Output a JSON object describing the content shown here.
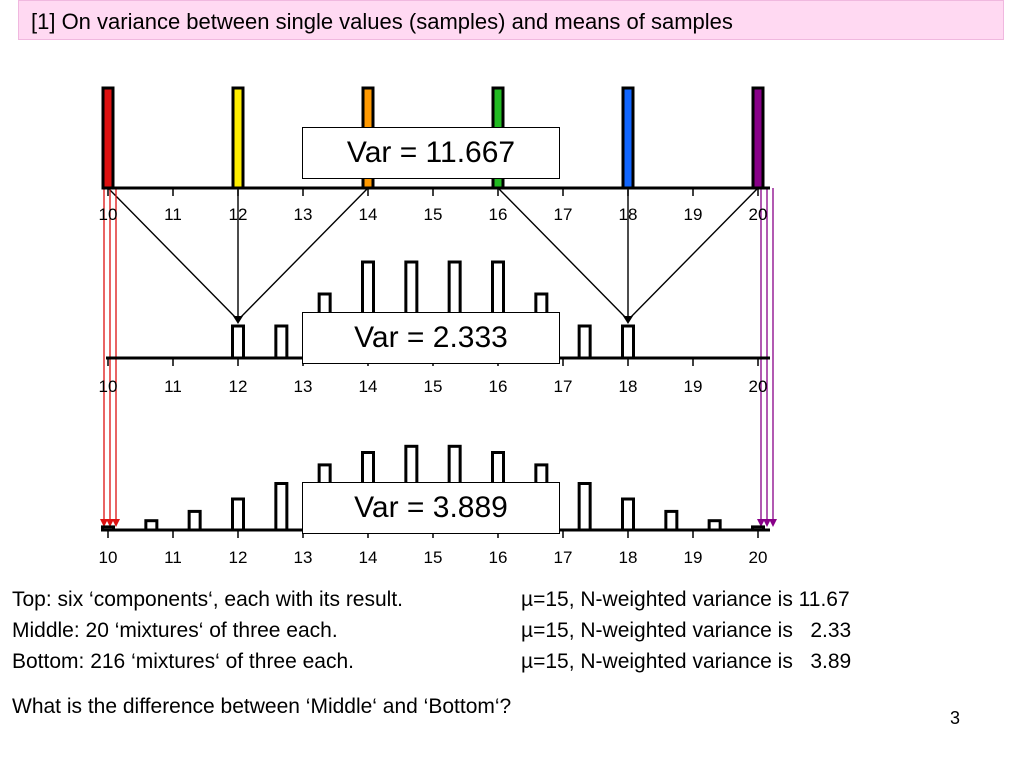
{
  "slide": {
    "title": "[1] On variance between single values (samples) and means of samples",
    "page_number": "3"
  },
  "captions": {
    "top_left": "Top: six ‘components‘, each with its result.",
    "top_right": "µ=15, N-weighted variance is 11.67",
    "middle_left": "Middle: 20 ‘mixtures‘ of three each.",
    "middle_right": "µ=15, N-weighted variance is   2.33",
    "bottom_left": "Bottom: 216 ‘mixtures‘ of three each.",
    "bottom_right": "µ=15, N-weighted variance is   3.89",
    "question": "What is the difference between ‘Middle‘ and ‘Bottom‘?"
  },
  "chart_data": [
    {
      "type": "bar",
      "panel": "top",
      "annotation": "Var = 11.667",
      "x": [
        10,
        12,
        14,
        16,
        18,
        20
      ],
      "values": [
        1,
        1,
        1,
        1,
        1,
        1
      ],
      "colors": [
        "#dd1111",
        "#ffee00",
        "#ff9900",
        "#22bb22",
        "#1166ff",
        "#880088"
      ],
      "xticks": [
        "10",
        "11",
        "12",
        "13",
        "14",
        "15",
        "16",
        "17",
        "18",
        "19",
        "20"
      ],
      "xlim": [
        10,
        20
      ]
    },
    {
      "type": "bar",
      "panel": "middle",
      "annotation": "Var = 2.333",
      "x": [
        12,
        12.667,
        13.333,
        14,
        14.667,
        15.333,
        16,
        16.667,
        17.333,
        18
      ],
      "values": [
        1,
        1,
        2,
        3,
        3,
        3,
        3,
        2,
        1,
        1
      ],
      "xticks": [
        "10",
        "11",
        "12",
        "13",
        "14",
        "15",
        "16",
        "17",
        "18",
        "19",
        "20"
      ],
      "xlim": [
        10,
        20
      ]
    },
    {
      "type": "bar",
      "panel": "bottom",
      "annotation": "Var = 3.889",
      "x": [
        10,
        10.667,
        11.333,
        12,
        12.667,
        13.333,
        14,
        14.667,
        15.333,
        16,
        16.667,
        17.333,
        18,
        18.667,
        19.333,
        20
      ],
      "values": [
        1,
        3,
        6,
        10,
        15,
        21,
        25,
        27,
        27,
        25,
        21,
        15,
        10,
        6,
        3,
        1
      ],
      "xticks": [
        "10",
        "11",
        "12",
        "13",
        "14",
        "15",
        "16",
        "17",
        "18",
        "19",
        "20"
      ],
      "xlim": [
        10,
        20
      ]
    }
  ]
}
